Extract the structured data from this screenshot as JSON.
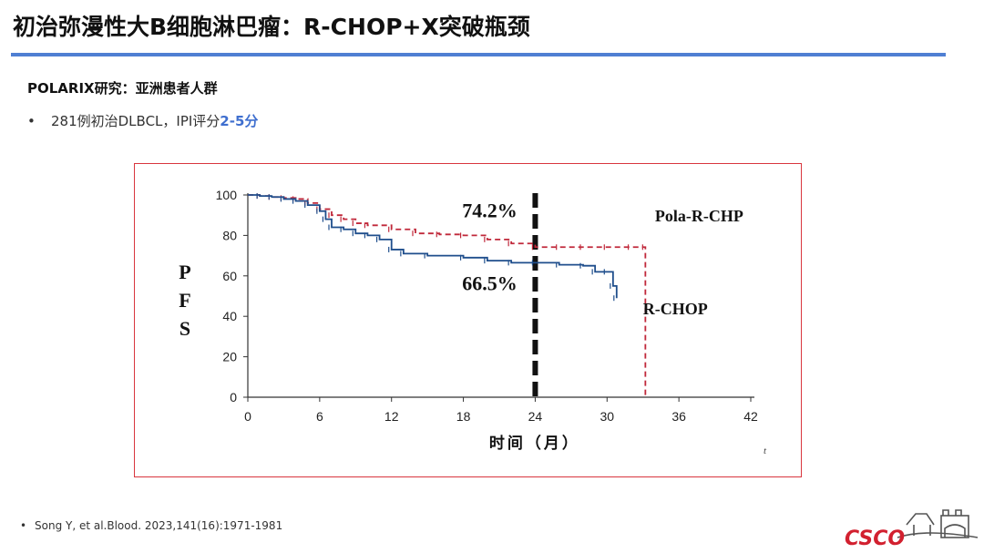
{
  "slide": {
    "title": "初治弥漫性大B细胞淋巴瘤：R-CHOP+X突破瓶颈",
    "study_heading": "POLARIX研究：亚洲患者人群",
    "bullet_text": "281例初治DLBCL，IPI评分",
    "bullet_highlight": "2-5分",
    "reference": "Song Y, et al.Blood. 2023,141(16):1971-1981",
    "logo_text": "CSCO",
    "accent_color": "#4f7fd3",
    "highlight_color": "#3f6fcf"
  },
  "chart_data": {
    "type": "line",
    "ylabel": "PFS",
    "xlabel": "时间（月）",
    "xlim": [
      0,
      42
    ],
    "ylim": [
      0,
      100
    ],
    "xticks": [
      0,
      6,
      12,
      18,
      24,
      30,
      36,
      42
    ],
    "yticks": [
      0,
      20,
      40,
      60,
      80,
      100
    ],
    "grid": false,
    "landmark_x": 24,
    "stray_mark": "t",
    "series": [
      {
        "name": "Pola-R-CHP",
        "color": "#c0283a",
        "style": "dashed",
        "x": [
          0,
          1,
          2,
          3,
          4,
          5,
          6,
          7,
          8,
          9,
          10,
          12,
          14,
          16,
          18,
          20,
          22,
          24,
          26,
          28,
          30,
          32,
          33.2,
          33.2
        ],
        "y": [
          100,
          99.5,
          99,
          98.5,
          98,
          96,
          93,
          90,
          88,
          86,
          85,
          83,
          81,
          80.5,
          80,
          78,
          76,
          74.2,
          74.2,
          74.2,
          74.2,
          74.2,
          74.2,
          0
        ]
      },
      {
        "name": "R-CHOP",
        "color": "#1f4e8c",
        "style": "solid",
        "x": [
          0,
          1,
          2,
          3,
          4,
          5,
          6,
          6.5,
          7,
          8,
          9,
          10,
          11,
          12,
          13,
          15,
          18,
          20,
          22,
          24,
          26,
          28,
          29,
          30,
          30.5,
          30.8
        ],
        "y": [
          100,
          99.5,
          99,
          98,
          97,
          95,
          92,
          88,
          84,
          83,
          81,
          80,
          78,
          73,
          71,
          70,
          69,
          67.5,
          66.5,
          66.5,
          65.5,
          65,
          62,
          62,
          55,
          49
        ]
      }
    ],
    "annotations": [
      {
        "text": "74.2%",
        "x": 22.5,
        "y": 89
      },
      {
        "text": "66.5%",
        "x": 22.5,
        "y": 53
      },
      {
        "text": "Pola-R-CHP",
        "x": 34,
        "y": 87
      },
      {
        "text": "R-CHOP",
        "x": 33,
        "y": 41
      }
    ]
  }
}
